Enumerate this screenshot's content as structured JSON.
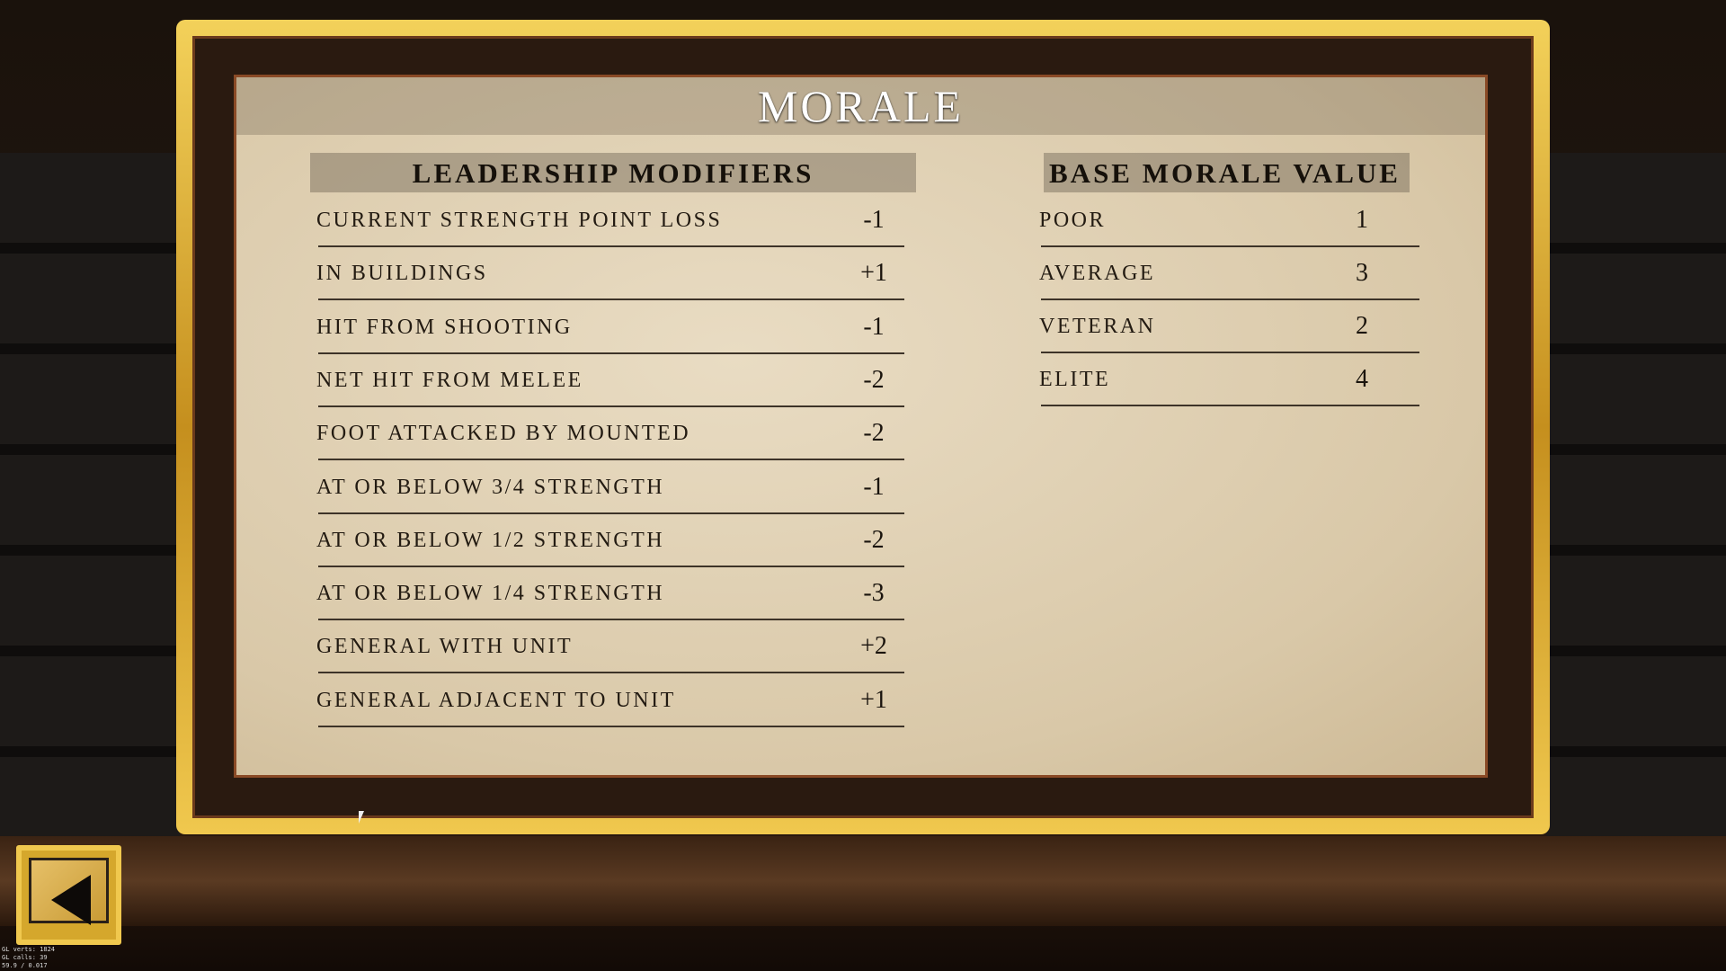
{
  "title": "MORALE",
  "leadership": {
    "header": "LEADERSHIP MODIFIERS",
    "rows": [
      {
        "label": "CURRENT STRENGTH POINT LOSS",
        "value": "-1"
      },
      {
        "label": "IN BUILDINGS",
        "value": "+1"
      },
      {
        "label": "HIT FROM SHOOTING",
        "value": "-1"
      },
      {
        "label": "NET HIT FROM MELEE",
        "value": "-2"
      },
      {
        "label": "FOOT ATTACKED BY MOUNTED",
        "value": "-2"
      },
      {
        "label": "AT OR BELOW 3/4 STRENGTH",
        "value": "-1"
      },
      {
        "label": "AT OR BELOW 1/2 STRENGTH",
        "value": "-2"
      },
      {
        "label": "AT OR BELOW 1/4 STRENGTH",
        "value": "-3"
      },
      {
        "label": "GENERAL WITH UNIT",
        "value": "+2"
      },
      {
        "label": "GENERAL ADJACENT TO UNIT",
        "value": "+1"
      }
    ]
  },
  "base_morale": {
    "header": "BASE MORALE VALUE",
    "rows": [
      {
        "label": "POOR",
        "value": "1"
      },
      {
        "label": "AVERAGE",
        "value": "3"
      },
      {
        "label": "VETERAN",
        "value": "2"
      },
      {
        "label": "ELITE",
        "value": "4"
      }
    ]
  },
  "back_button": {
    "icon": "left-triangle-icon"
  },
  "debug": [
    "GL verts:  1824",
    "GL calls:    39",
    "59.9 / 0.017"
  ]
}
